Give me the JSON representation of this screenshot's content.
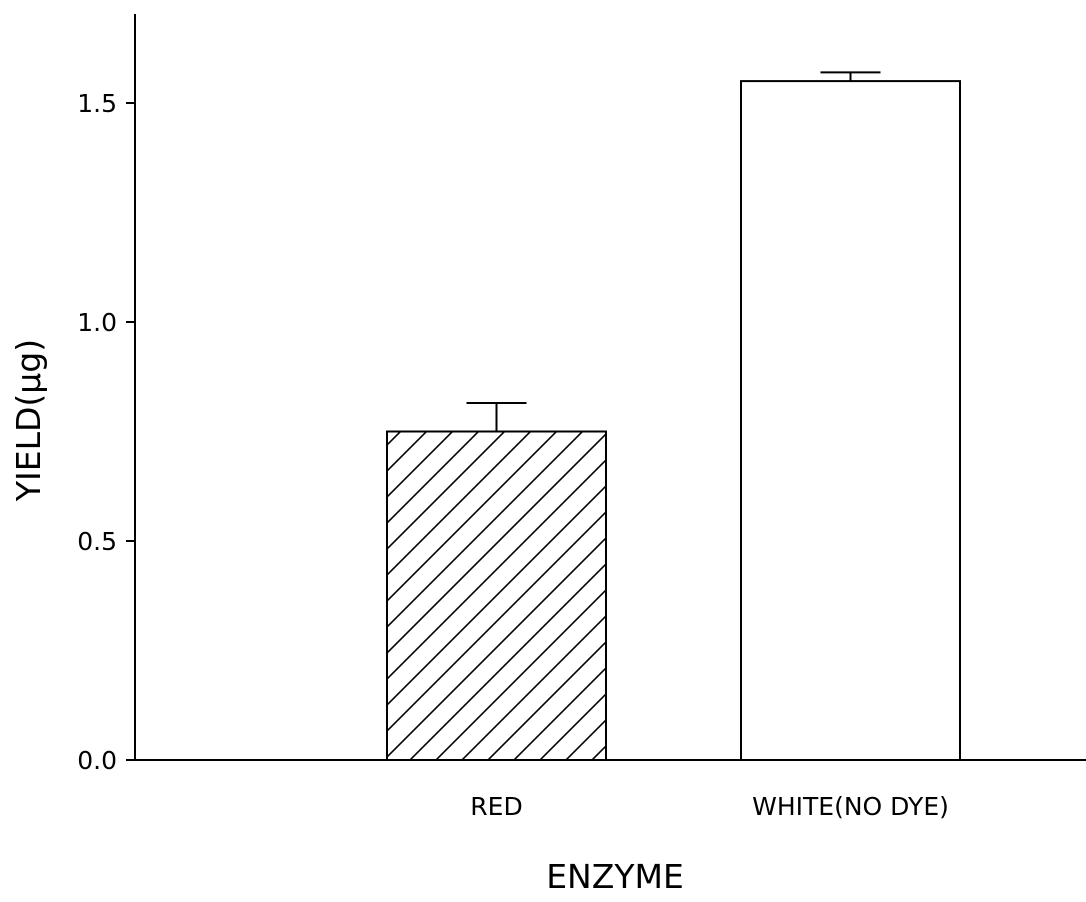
{
  "chart_data": {
    "type": "bar",
    "title": "",
    "xlabel": "ENZYME",
    "ylabel": "YIELD(μg)",
    "categories": [
      "RED",
      "WHITE(NO DYE)"
    ],
    "series": [
      {
        "values": [
          0.75,
          1.55
        ],
        "error_upper": [
          0.065,
          0.02
        ],
        "fills": [
          "hatched",
          "white"
        ]
      }
    ],
    "ylim": [
      0,
      1.7
    ],
    "yticks": [
      "0.0",
      "0.5",
      "1.0",
      "1.5"
    ],
    "grid": false,
    "legend": "none"
  }
}
